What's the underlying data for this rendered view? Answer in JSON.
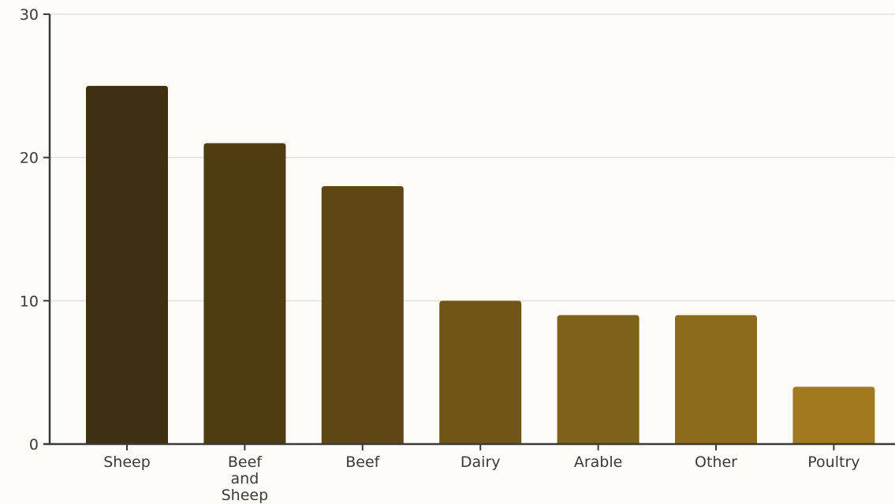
{
  "chart_data": {
    "type": "bar",
    "title": "",
    "xlabel": "",
    "ylabel": "",
    "categories": [
      "Sheep",
      "Beef and Sheep",
      "Beef",
      "Dairy",
      "Arable",
      "Other",
      "Poultry"
    ],
    "category_lines": [
      [
        "Sheep"
      ],
      [
        "Beef",
        "and",
        "Sheep"
      ],
      [
        "Beef"
      ],
      [
        "Dairy"
      ],
      [
        "Arable"
      ],
      [
        "Other"
      ],
      [
        "Poultry"
      ]
    ],
    "values": [
      25,
      21,
      18,
      10,
      9,
      9,
      4
    ],
    "colors": [
      "#3e3010",
      "#4f3c10",
      "#5e4714",
      "#705517",
      "#7e611b",
      "#8c6c1c",
      "#a17a20"
    ],
    "ylim": [
      0,
      30
    ],
    "yticks": [
      0,
      10,
      20,
      30
    ],
    "grid": true,
    "legend": "none"
  }
}
